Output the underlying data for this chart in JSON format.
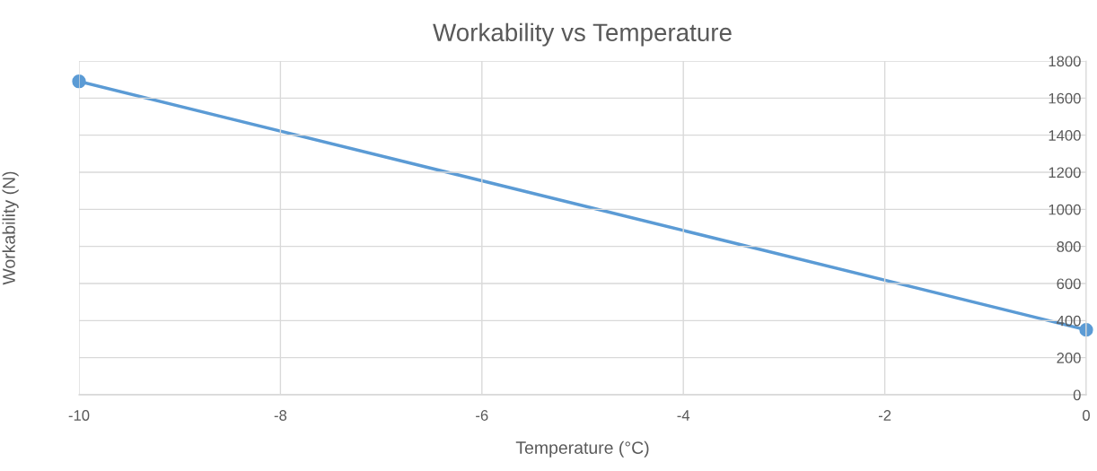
{
  "chart_data": {
    "type": "line",
    "title": "Workability vs Temperature",
    "xlabel": "Temperature (°C)",
    "ylabel": "Workability (N)",
    "x": [
      -10,
      0
    ],
    "series": [
      {
        "color": "#5b9bd5",
        "values": [
          1690,
          350
        ]
      }
    ],
    "xlim": [
      -10,
      0
    ],
    "xticks": [
      -10,
      -8,
      -6,
      -4,
      -2,
      0
    ],
    "ylim": [
      0,
      1800
    ],
    "yticks": [
      0,
      200,
      400,
      600,
      800,
      1000,
      1200,
      1400,
      1600,
      1800
    ],
    "grid": true,
    "marker": "circle",
    "line_style": "solid"
  }
}
